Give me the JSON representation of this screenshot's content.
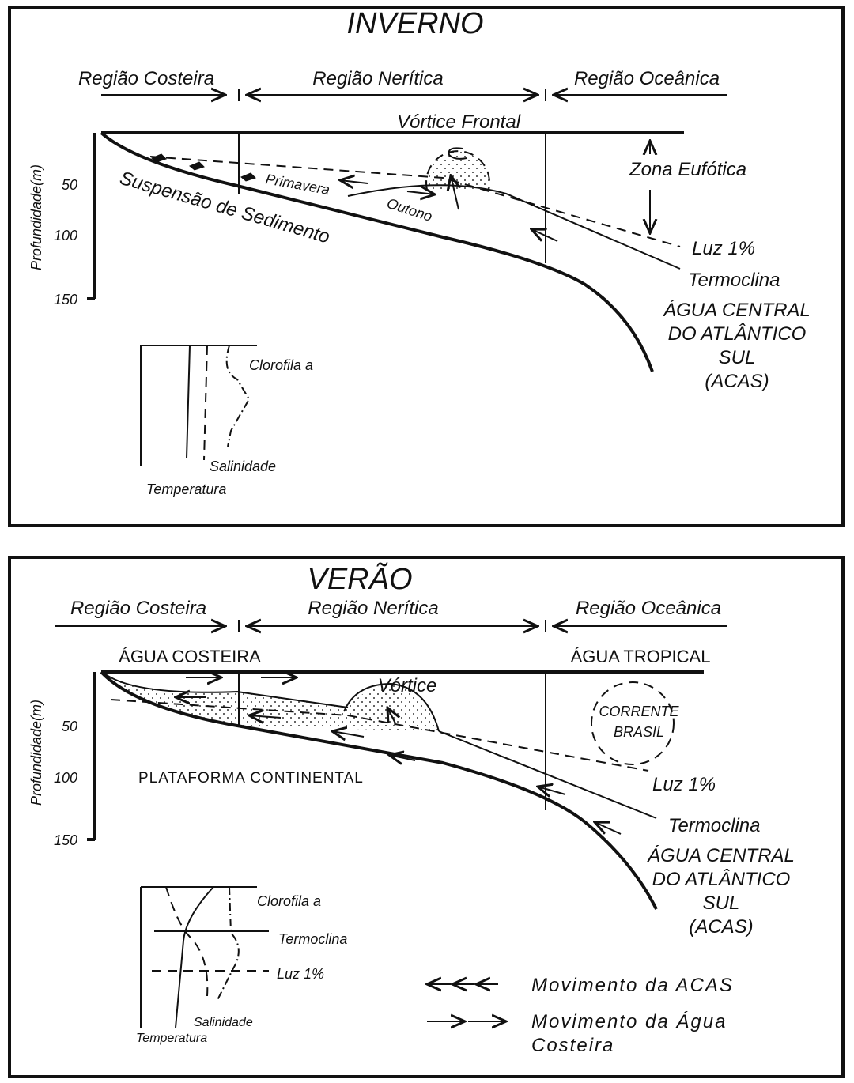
{
  "panels": [
    {
      "title": "INVERNO",
      "regions": [
        "Região Costeira",
        "Região Nerítica",
        "Região Oceânica"
      ],
      "axis_label": "Profundidade(m)",
      "depth_ticks": [
        50,
        100,
        150
      ],
      "labels": {
        "vortex": "Vórtice Frontal",
        "euphotic": "Zona Eufótica",
        "sediment": "Suspensão de Sedimento",
        "spring": "Primavera",
        "autumn": "Outono",
        "light": "Luz 1%",
        "thermocline": "Termoclina"
      },
      "water_mass": [
        "ÁGUA CENTRAL",
        "DO ATLÂNTICO",
        "SUL",
        "(ACAS)"
      ],
      "inset": {
        "chlorophyll": "Clorofila a",
        "salinity": "Salinidade",
        "temperature": "Temperatura"
      }
    },
    {
      "title": "VERÃO",
      "regions": [
        "Região Costeira",
        "Região Nerítica",
        "Região Oceânica"
      ],
      "axis_label": "Profundidade(m)",
      "depth_ticks": [
        50,
        100,
        150
      ],
      "labels": {
        "coastal_water": "ÁGUA COSTEIRA",
        "tropical_water": "ÁGUA TROPICAL",
        "vortex": "Vórtice",
        "shelf": "PLATAFORMA CONTINENTAL",
        "light": "Luz 1%",
        "thermocline": "Termoclina"
      },
      "current": [
        "CORRENTE",
        "BRASIL"
      ],
      "water_mass": [
        "ÁGUA CENTRAL",
        "DO ATLÂNTICO",
        "SUL",
        "(ACAS)"
      ],
      "inset": {
        "chlorophyll": "Clorofila a",
        "thermocline": "Termoclina",
        "light": "Luz 1%",
        "salinity": "Salinidade",
        "temperature": "Temperatura"
      }
    }
  ],
  "legend": [
    {
      "lines": [
        "Movimento da ACAS"
      ]
    },
    {
      "lines": [
        "Movimento da Água",
        "Costeira"
      ]
    }
  ]
}
